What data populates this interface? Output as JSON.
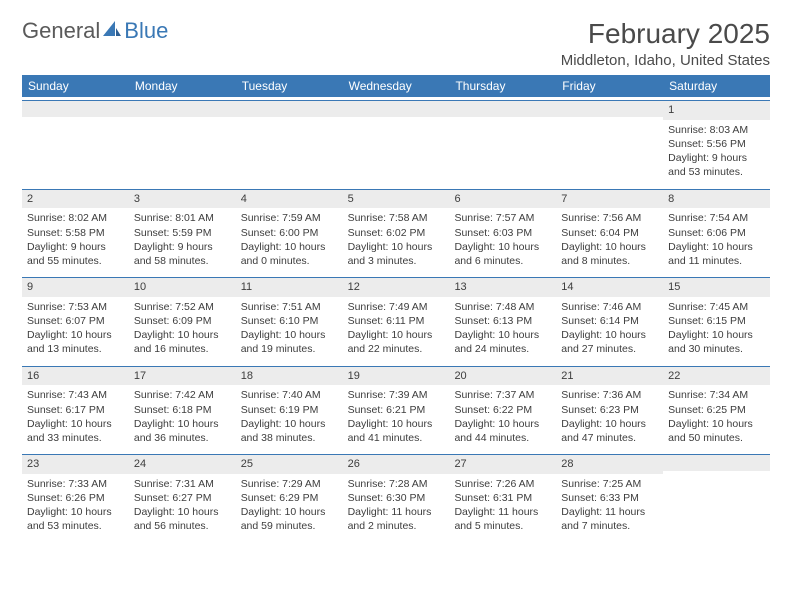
{
  "logo": {
    "part1": "General",
    "part2": "Blue"
  },
  "title": "February 2025",
  "subtitle": "Middleton, Idaho, United States",
  "colors": {
    "header_bar": "#3a78b5",
    "day_bar_bg": "#ececec",
    "text": "#3d3d3d",
    "logo_gray": "#5a5a5a",
    "logo_blue": "#3a78b5"
  },
  "weekdays": [
    "Sunday",
    "Monday",
    "Tuesday",
    "Wednesday",
    "Thursday",
    "Friday",
    "Saturday"
  ],
  "weeks": [
    [
      {
        "day": "",
        "sunrise": "",
        "sunset": "",
        "daylight": ""
      },
      {
        "day": "",
        "sunrise": "",
        "sunset": "",
        "daylight": ""
      },
      {
        "day": "",
        "sunrise": "",
        "sunset": "",
        "daylight": ""
      },
      {
        "day": "",
        "sunrise": "",
        "sunset": "",
        "daylight": ""
      },
      {
        "day": "",
        "sunrise": "",
        "sunset": "",
        "daylight": ""
      },
      {
        "day": "",
        "sunrise": "",
        "sunset": "",
        "daylight": ""
      },
      {
        "day": "1",
        "sunrise": "Sunrise: 8:03 AM",
        "sunset": "Sunset: 5:56 PM",
        "daylight": "Daylight: 9 hours and 53 minutes."
      }
    ],
    [
      {
        "day": "2",
        "sunrise": "Sunrise: 8:02 AM",
        "sunset": "Sunset: 5:58 PM",
        "daylight": "Daylight: 9 hours and 55 minutes."
      },
      {
        "day": "3",
        "sunrise": "Sunrise: 8:01 AM",
        "sunset": "Sunset: 5:59 PM",
        "daylight": "Daylight: 9 hours and 58 minutes."
      },
      {
        "day": "4",
        "sunrise": "Sunrise: 7:59 AM",
        "sunset": "Sunset: 6:00 PM",
        "daylight": "Daylight: 10 hours and 0 minutes."
      },
      {
        "day": "5",
        "sunrise": "Sunrise: 7:58 AM",
        "sunset": "Sunset: 6:02 PM",
        "daylight": "Daylight: 10 hours and 3 minutes."
      },
      {
        "day": "6",
        "sunrise": "Sunrise: 7:57 AM",
        "sunset": "Sunset: 6:03 PM",
        "daylight": "Daylight: 10 hours and 6 minutes."
      },
      {
        "day": "7",
        "sunrise": "Sunrise: 7:56 AM",
        "sunset": "Sunset: 6:04 PM",
        "daylight": "Daylight: 10 hours and 8 minutes."
      },
      {
        "day": "8",
        "sunrise": "Sunrise: 7:54 AM",
        "sunset": "Sunset: 6:06 PM",
        "daylight": "Daylight: 10 hours and 11 minutes."
      }
    ],
    [
      {
        "day": "9",
        "sunrise": "Sunrise: 7:53 AM",
        "sunset": "Sunset: 6:07 PM",
        "daylight": "Daylight: 10 hours and 13 minutes."
      },
      {
        "day": "10",
        "sunrise": "Sunrise: 7:52 AM",
        "sunset": "Sunset: 6:09 PM",
        "daylight": "Daylight: 10 hours and 16 minutes."
      },
      {
        "day": "11",
        "sunrise": "Sunrise: 7:51 AM",
        "sunset": "Sunset: 6:10 PM",
        "daylight": "Daylight: 10 hours and 19 minutes."
      },
      {
        "day": "12",
        "sunrise": "Sunrise: 7:49 AM",
        "sunset": "Sunset: 6:11 PM",
        "daylight": "Daylight: 10 hours and 22 minutes."
      },
      {
        "day": "13",
        "sunrise": "Sunrise: 7:48 AM",
        "sunset": "Sunset: 6:13 PM",
        "daylight": "Daylight: 10 hours and 24 minutes."
      },
      {
        "day": "14",
        "sunrise": "Sunrise: 7:46 AM",
        "sunset": "Sunset: 6:14 PM",
        "daylight": "Daylight: 10 hours and 27 minutes."
      },
      {
        "day": "15",
        "sunrise": "Sunrise: 7:45 AM",
        "sunset": "Sunset: 6:15 PM",
        "daylight": "Daylight: 10 hours and 30 minutes."
      }
    ],
    [
      {
        "day": "16",
        "sunrise": "Sunrise: 7:43 AM",
        "sunset": "Sunset: 6:17 PM",
        "daylight": "Daylight: 10 hours and 33 minutes."
      },
      {
        "day": "17",
        "sunrise": "Sunrise: 7:42 AM",
        "sunset": "Sunset: 6:18 PM",
        "daylight": "Daylight: 10 hours and 36 minutes."
      },
      {
        "day": "18",
        "sunrise": "Sunrise: 7:40 AM",
        "sunset": "Sunset: 6:19 PM",
        "daylight": "Daylight: 10 hours and 38 minutes."
      },
      {
        "day": "19",
        "sunrise": "Sunrise: 7:39 AM",
        "sunset": "Sunset: 6:21 PM",
        "daylight": "Daylight: 10 hours and 41 minutes."
      },
      {
        "day": "20",
        "sunrise": "Sunrise: 7:37 AM",
        "sunset": "Sunset: 6:22 PM",
        "daylight": "Daylight: 10 hours and 44 minutes."
      },
      {
        "day": "21",
        "sunrise": "Sunrise: 7:36 AM",
        "sunset": "Sunset: 6:23 PM",
        "daylight": "Daylight: 10 hours and 47 minutes."
      },
      {
        "day": "22",
        "sunrise": "Sunrise: 7:34 AM",
        "sunset": "Sunset: 6:25 PM",
        "daylight": "Daylight: 10 hours and 50 minutes."
      }
    ],
    [
      {
        "day": "23",
        "sunrise": "Sunrise: 7:33 AM",
        "sunset": "Sunset: 6:26 PM",
        "daylight": "Daylight: 10 hours and 53 minutes."
      },
      {
        "day": "24",
        "sunrise": "Sunrise: 7:31 AM",
        "sunset": "Sunset: 6:27 PM",
        "daylight": "Daylight: 10 hours and 56 minutes."
      },
      {
        "day": "25",
        "sunrise": "Sunrise: 7:29 AM",
        "sunset": "Sunset: 6:29 PM",
        "daylight": "Daylight: 10 hours and 59 minutes."
      },
      {
        "day": "26",
        "sunrise": "Sunrise: 7:28 AM",
        "sunset": "Sunset: 6:30 PM",
        "daylight": "Daylight: 11 hours and 2 minutes."
      },
      {
        "day": "27",
        "sunrise": "Sunrise: 7:26 AM",
        "sunset": "Sunset: 6:31 PM",
        "daylight": "Daylight: 11 hours and 5 minutes."
      },
      {
        "day": "28",
        "sunrise": "Sunrise: 7:25 AM",
        "sunset": "Sunset: 6:33 PM",
        "daylight": "Daylight: 11 hours and 7 minutes."
      },
      {
        "day": "",
        "sunrise": "",
        "sunset": "",
        "daylight": ""
      }
    ]
  ]
}
